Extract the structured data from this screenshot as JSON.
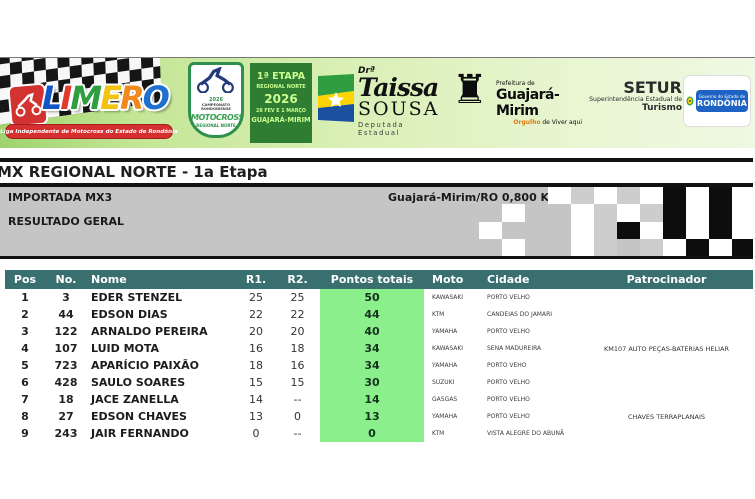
{
  "title": "MX REGIONAL NORTE - 1a Etapa",
  "info": {
    "category": "IMPORTADA MX3",
    "result_label": "RESULTADO GERAL",
    "location": "Guajará-Mirim/RO 0,800 Km"
  },
  "banner": {
    "limero": {
      "letters": [
        {
          "ch": "L",
          "color": "#1156c8"
        },
        {
          "ch": "I",
          "color": "#e03a2f"
        },
        {
          "ch": "M",
          "color": "#2e9e3e"
        },
        {
          "ch": "E",
          "color": "#f2c410"
        },
        {
          "ch": "R",
          "color": "#f08a1d"
        },
        {
          "ch": "O",
          "color": "#1d6fd0"
        }
      ],
      "tagline": "Liga Independente de Motocross do Estado de Rondônia"
    },
    "badge": {
      "year": "2026",
      "league": "CAMPEONATO RONDONIENSE",
      "title": "MOTOCROSS",
      "region": "REGIONAL NORTE"
    },
    "etapa": {
      "l1": "1ª ETAPA",
      "l2": "REGIONAL NORTE",
      "l3": "2026",
      "l4": "28 FEV E 1 MARÇO",
      "l5": "GUAJARÁ-MIRIM"
    },
    "taissa": {
      "dr": "Drª",
      "first": "Taissa",
      "last": "SOUSA",
      "role": "Deputada Estadual"
    },
    "prefeitura": {
      "line1": "Prefeitura de",
      "name": "Guajará-Mirim",
      "tagline_bold": "Orgulho",
      "tagline_rest": " de Viver aqui"
    },
    "setur": {
      "name": "SETUR",
      "sub": "Superintendência Estadual de",
      "sub2": "Turismo"
    },
    "governo": {
      "line1": "Governo do Estado de",
      "name": "RONDÔNIA"
    }
  },
  "table": {
    "headers": [
      "Pos",
      "No.",
      "Nome",
      "R1.",
      "R2.",
      "Pontos totais",
      "Moto",
      "Cidade",
      "Patrocinador"
    ],
    "rows": [
      {
        "pos": "1",
        "no": "3",
        "nome": "EDER STENZEL",
        "r1": "25",
        "r2": "25",
        "pts": "50",
        "moto": "KAWASAKI",
        "cidade": "PORTO VELHO",
        "patrocinador": ""
      },
      {
        "pos": "2",
        "no": "44",
        "nome": "EDSON DIAS",
        "r1": "22",
        "r2": "22",
        "pts": "44",
        "moto": "KTM",
        "cidade": "CANDEIAS DO JAMARI",
        "patrocinador": ""
      },
      {
        "pos": "3",
        "no": "122",
        "nome": "ARNALDO PEREIRA",
        "r1": "20",
        "r2": "20",
        "pts": "40",
        "moto": "YAMAHA",
        "cidade": "PORTO VELHO",
        "patrocinador": ""
      },
      {
        "pos": "4",
        "no": "107",
        "nome": "LUID MOTA",
        "r1": "16",
        "r2": "18",
        "pts": "34",
        "moto": "KAWASAKI",
        "cidade": "SENA MADUREIRA",
        "patrocinador": "KM107 AUTO PEÇAS-BATERIAS HELIAR"
      },
      {
        "pos": "5",
        "no": "723",
        "nome": "APARÍCIO PAIXÃO",
        "r1": "18",
        "r2": "16",
        "pts": "34",
        "moto": "YAMAHA",
        "cidade": "PORTO VEHO",
        "patrocinador": ""
      },
      {
        "pos": "6",
        "no": "428",
        "nome": "SAULO SOARES",
        "r1": "15",
        "r2": "15",
        "pts": "30",
        "moto": "SUZUKI",
        "cidade": "PORTO VELHO",
        "patrocinador": ""
      },
      {
        "pos": "7",
        "no": "18",
        "nome": "JACE ZANELLA",
        "r1": "14",
        "r2": "--",
        "pts": "14",
        "moto": "GASGAS",
        "cidade": "PORTO VELHO",
        "patrocinador": ""
      },
      {
        "pos": "8",
        "no": "27",
        "nome": "EDSON CHAVES",
        "r1": "13",
        "r2": "0",
        "pts": "13",
        "moto": "YAMAHA",
        "cidade": "PORTO VELHO",
        "patrocinador": "CHAVES TERRAPLANAIS"
      },
      {
        "pos": "9",
        "no": "243",
        "nome": "JAIR FERNANDO",
        "r1": "0",
        "r2": "--",
        "pts": "0",
        "moto": "KTM",
        "cidade": "VISTA ALEGRE DO ABUNÃ",
        "patrocinador": ""
      }
    ]
  },
  "checker": {
    "rows": [
      "...wgwgwbwbw",
      ".w..wgwgbwbw",
      "w...wgbwbwbw",
      ".w..wg.gwbwb"
    ],
    "colors": {
      "w": "#ffffff",
      "g": "#cdcdcd",
      "b": "#0d0d0d"
    }
  },
  "colors": {
    "header_bg": "#3a6f6f",
    "points_bg": "#8bef8b",
    "gray_box": "#c5c5c5",
    "etapa_bg": "#2e7d32",
    "etapa_text": "#ccff90",
    "gov_blue": "#1e63c4",
    "limero_ribbon": "#d62f2f"
  }
}
